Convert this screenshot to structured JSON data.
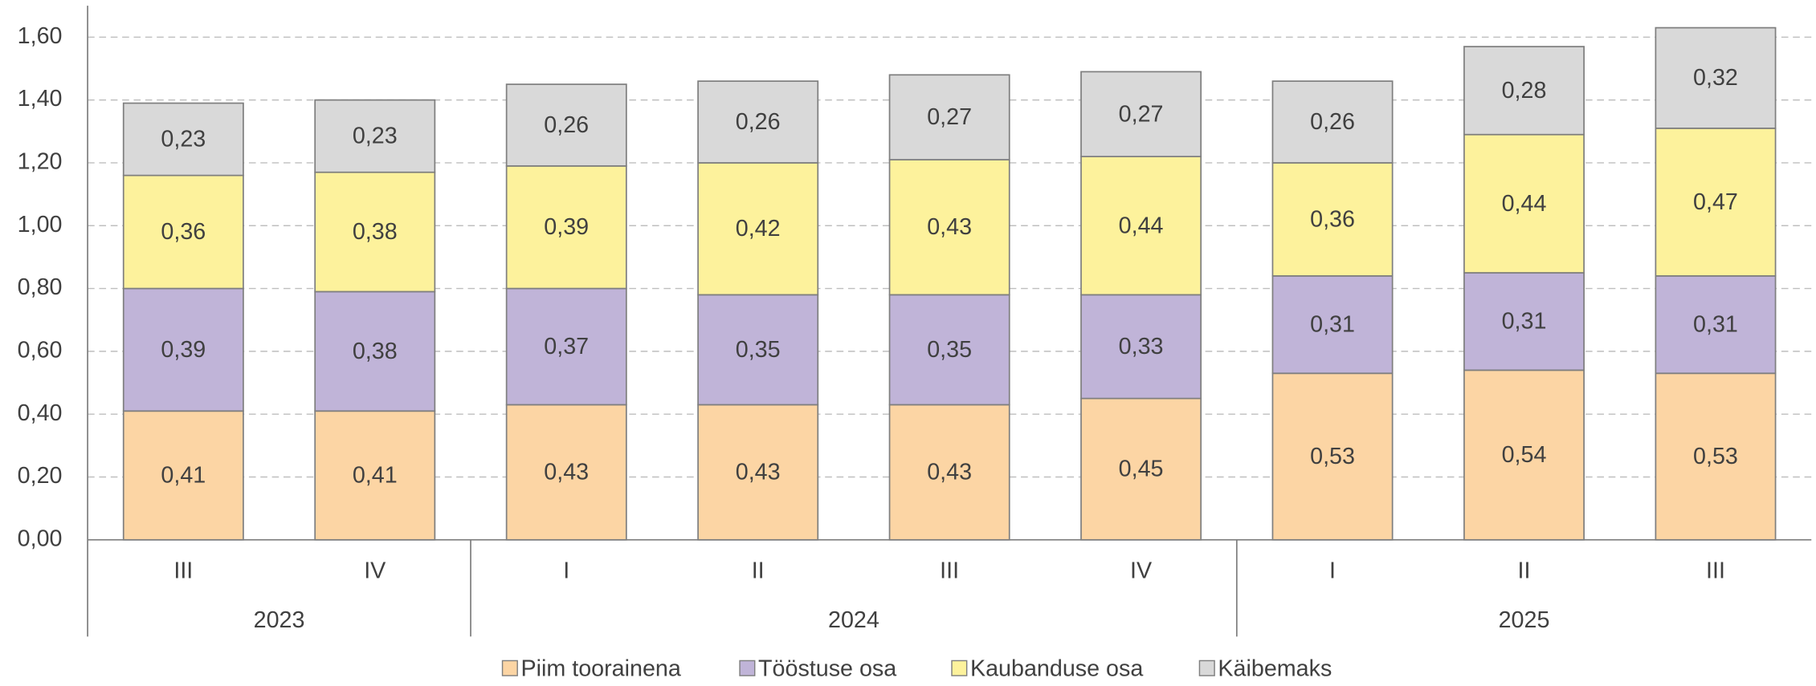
{
  "chart_data": {
    "type": "stacked_bar",
    "groups": [
      {
        "label": "2023",
        "categories": [
          "III",
          "IV"
        ]
      },
      {
        "label": "2024",
        "categories": [
          "I",
          "II",
          "III",
          "IV"
        ]
      },
      {
        "label": "2025",
        "categories": [
          "I",
          "II",
          "III"
        ]
      }
    ],
    "series": [
      {
        "name": "Piim toorainena",
        "color": "#fcd5a4",
        "values": [
          0.41,
          0.41,
          0.43,
          0.43,
          0.43,
          0.45,
          0.53,
          0.54,
          0.53
        ],
        "value_labels": [
          "0,41",
          "0,41",
          "0,43",
          "0,43",
          "0,43",
          "0,45",
          "0,53",
          "0,54",
          "0,53"
        ]
      },
      {
        "name": "Tööstuse osa",
        "color": "#c0b4d8",
        "values": [
          0.39,
          0.38,
          0.37,
          0.35,
          0.35,
          0.33,
          0.31,
          0.31,
          0.31
        ],
        "value_labels": [
          "0,39",
          "0,38",
          "0,37",
          "0,35",
          "0,35",
          "0,33",
          "0,31",
          "0,31",
          "0,31"
        ]
      },
      {
        "name": "Kaubanduse osa",
        "color": "#fdf29c",
        "values": [
          0.36,
          0.38,
          0.39,
          0.42,
          0.43,
          0.44,
          0.36,
          0.44,
          0.47
        ],
        "value_labels": [
          "0,36",
          "0,38",
          "0,39",
          "0,42",
          "0,43",
          "0,44",
          "0,36",
          "0,44",
          "0,47"
        ]
      },
      {
        "name": "Käibemaks",
        "color": "#d9d9d9",
        "values": [
          0.23,
          0.23,
          0.26,
          0.26,
          0.27,
          0.27,
          0.26,
          0.28,
          0.32
        ],
        "value_labels": [
          "0,23",
          "0,23",
          "0,26",
          "0,26",
          "0,27",
          "0,27",
          "0,26",
          "0,28",
          "0,32"
        ]
      }
    ],
    "ylim": [
      0,
      1.7
    ],
    "yticks": [
      {
        "value": 0,
        "label": "0,00"
      },
      {
        "value": 0.2,
        "label": "0,20"
      },
      {
        "value": 0.4,
        "label": "0,40"
      },
      {
        "value": 0.6,
        "label": "0,60"
      },
      {
        "value": 0.8,
        "label": "0,80"
      },
      {
        "value": 1.0,
        "label": "1,00"
      },
      {
        "value": 1.2,
        "label": "1,20"
      },
      {
        "value": 1.4,
        "label": "1,40"
      },
      {
        "value": 1.6,
        "label": "1,60"
      }
    ],
    "grid": true,
    "legend": "bottom"
  }
}
